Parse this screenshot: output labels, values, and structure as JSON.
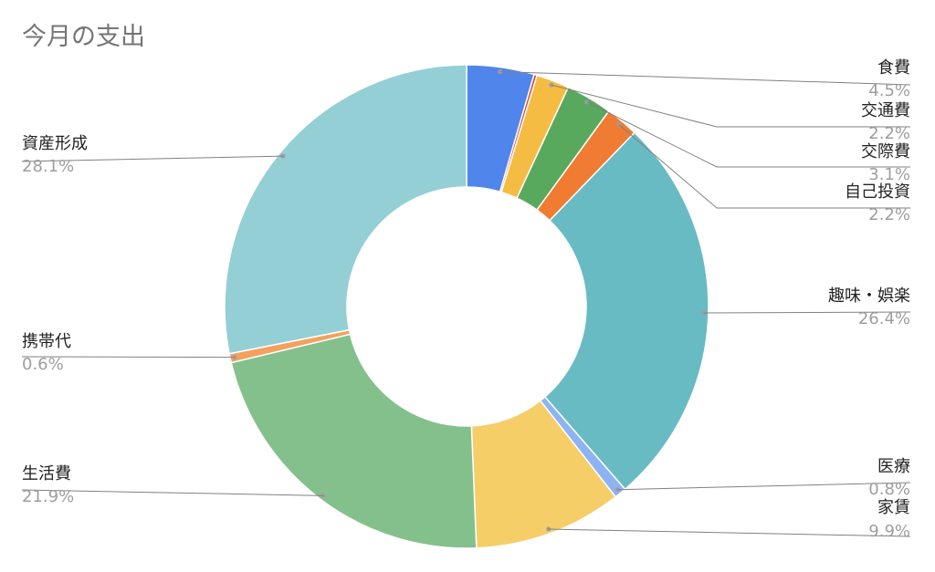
{
  "chart_data": {
    "type": "pie",
    "style": "donut",
    "title": "今月の支出",
    "slices": [
      {
        "label": "食費",
        "percent_label": "4.5%",
        "value": 4.5,
        "color": "#5086ec",
        "side": "right"
      },
      {
        "label": "",
        "percent_label": "",
        "value": 0.2,
        "color": "#dc4437",
        "side": "none"
      },
      {
        "label": "交通費",
        "percent_label": "2.2%",
        "value": 2.2,
        "color": "#f4bc42",
        "side": "right"
      },
      {
        "label": "交際費",
        "percent_label": "3.1%",
        "value": 3.1,
        "color": "#58a95d",
        "side": "right"
      },
      {
        "label": "自己投資",
        "percent_label": "2.2%",
        "value": 2.2,
        "color": "#f07b32",
        "side": "right"
      },
      {
        "label": "趣味・娯楽",
        "percent_label": "26.4%",
        "value": 26.4,
        "color": "#69bbc3",
        "side": "right"
      },
      {
        "label": "医療",
        "percent_label": "0.8%",
        "value": 0.8,
        "color": "#8eb3f2",
        "side": "right"
      },
      {
        "label": "家賃",
        "percent_label": "9.9%",
        "value": 9.9,
        "color": "#f5ce68",
        "side": "right"
      },
      {
        "label": "生活費",
        "percent_label": "21.9%",
        "value": 21.9,
        "color": "#84c08b",
        "side": "left"
      },
      {
        "label": "携帯代",
        "percent_label": "0.6%",
        "value": 0.6,
        "color": "#f3a15e",
        "side": "left"
      },
      {
        "label": "資産形成",
        "percent_label": "28.1%",
        "value": 28.1,
        "color": "#94cfd5",
        "side": "left"
      }
    ],
    "legend": "none",
    "labels": "outside-with-leader-lines"
  }
}
